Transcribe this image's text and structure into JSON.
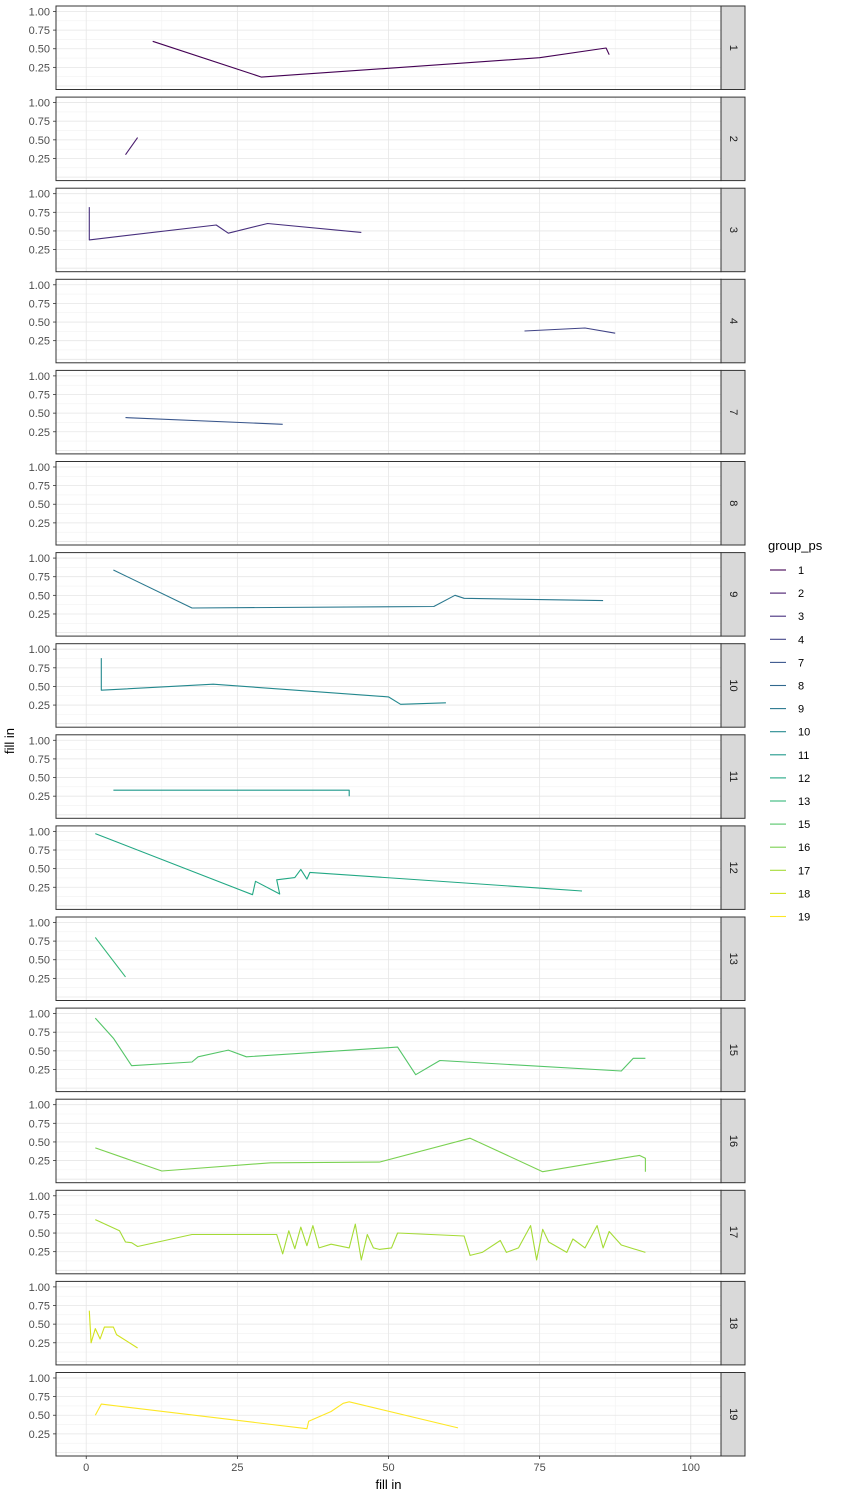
{
  "chart_data": {
    "type": "line",
    "xlabel": "fill in",
    "ylabel": "fill in",
    "xlim": [
      -5,
      105
    ],
    "ylim": [
      0,
      1
    ],
    "x_ticks": [
      0,
      25,
      50,
      75,
      100
    ],
    "y_ticks": [
      0.25,
      0.5,
      0.75,
      1.0
    ],
    "y_tick_labels": [
      "0.25",
      "0.50",
      "0.75",
      "1.00"
    ],
    "grid": true,
    "legend": {
      "title": "group_ps",
      "placement": "right"
    },
    "panels": [
      {
        "name": "1",
        "color": "#440154",
        "x": [
          11,
          29,
          75,
          86,
          86.5
        ],
        "y": [
          0.6,
          0.12,
          0.38,
          0.51,
          0.42
        ]
      },
      {
        "name": "2",
        "color": "#481a6c",
        "x": [
          6.5,
          8.5
        ],
        "y": [
          0.3,
          0.53
        ]
      },
      {
        "name": "3",
        "color": "#472f7d",
        "x": [
          0.5,
          0.5,
          21.5,
          23.5,
          30,
          45.5
        ],
        "y": [
          0.82,
          0.38,
          0.58,
          0.47,
          0.6,
          0.48
        ]
      },
      {
        "name": "4",
        "color": "#414487",
        "x": [
          72.5,
          82.5,
          87.5
        ],
        "y": [
          0.38,
          0.42,
          0.35
        ]
      },
      {
        "name": "7",
        "color": "#39568c",
        "x": [
          6.5,
          32.5
        ],
        "y": [
          0.44,
          0.35
        ]
      },
      {
        "name": "8",
        "color": "#31688e",
        "x": [],
        "y": []
      },
      {
        "name": "9",
        "color": "#2a788e",
        "x": [
          4.5,
          17.5,
          57.5,
          61,
          62.5,
          85.5
        ],
        "y": [
          0.84,
          0.33,
          0.35,
          0.5,
          0.46,
          0.43
        ]
      },
      {
        "name": "10",
        "color": "#23888e",
        "x": [
          2.5,
          2.5,
          21,
          50,
          52,
          59.5
        ],
        "y": [
          0.88,
          0.45,
          0.53,
          0.36,
          0.26,
          0.28
        ]
      },
      {
        "name": "11",
        "color": "#1f988b",
        "x": [
          4.5,
          43.5,
          43.5
        ],
        "y": [
          0.33,
          0.33,
          0.25
        ]
      },
      {
        "name": "12",
        "color": "#22a884",
        "x": [
          1.5,
          27.5,
          28,
          32,
          31.5,
          34.5,
          35.5,
          36.5,
          37,
          82
        ],
        "y": [
          0.97,
          0.15,
          0.33,
          0.16,
          0.35,
          0.38,
          0.49,
          0.36,
          0.45,
          0.2
        ]
      },
      {
        "name": "13",
        "color": "#35b779",
        "x": [
          1.5,
          6.5
        ],
        "y": [
          0.8,
          0.27
        ]
      },
      {
        "name": "15",
        "color": "#54c568",
        "x": [
          1.5,
          4.5,
          7.5,
          17.5,
          18.5,
          23.5,
          26.5,
          51.5,
          54.5,
          58.5,
          88.5,
          90.5,
          92.5
        ],
        "y": [
          0.94,
          0.67,
          0.3,
          0.35,
          0.42,
          0.51,
          0.42,
          0.55,
          0.18,
          0.37,
          0.23,
          0.4,
          0.4
        ]
      },
      {
        "name": "16",
        "color": "#7ad151",
        "x": [
          1.5,
          12.5,
          30.5,
          48.5,
          63.5,
          75.5,
          91.5,
          92.5,
          92.5
        ],
        "y": [
          0.42,
          0.11,
          0.22,
          0.23,
          0.55,
          0.1,
          0.32,
          0.28,
          0.1
        ]
      },
      {
        "name": "17",
        "color": "#a5db36",
        "x": [
          1.5,
          5.5,
          6.5,
          7.5,
          8.5,
          17.5,
          31.5,
          32.5,
          33.5,
          34.5,
          35.5,
          36.5,
          37.5,
          38.5,
          40.5,
          43.5,
          44.5,
          45.5,
          46.5,
          47.5,
          48.5,
          50.5,
          51.5,
          62.5,
          63.5,
          65.5,
          68.5,
          69.5,
          71.5,
          73.5,
          74.5,
          75.5,
          76.5,
          79.5,
          80.5,
          82.5,
          84.5,
          85.5,
          86.5,
          88.5,
          92.5
        ],
        "y": [
          0.68,
          0.53,
          0.38,
          0.37,
          0.32,
          0.48,
          0.48,
          0.22,
          0.53,
          0.29,
          0.58,
          0.33,
          0.6,
          0.3,
          0.35,
          0.3,
          0.62,
          0.14,
          0.48,
          0.3,
          0.28,
          0.3,
          0.5,
          0.46,
          0.2,
          0.24,
          0.4,
          0.24,
          0.3,
          0.6,
          0.14,
          0.55,
          0.38,
          0.24,
          0.42,
          0.3,
          0.6,
          0.3,
          0.52,
          0.34,
          0.24
        ]
      },
      {
        "name": "18",
        "color": "#d2e21b",
        "x": [
          0.5,
          0.8,
          1.5,
          2.3,
          3,
          4.5,
          5,
          8.5
        ],
        "y": [
          0.68,
          0.25,
          0.44,
          0.3,
          0.46,
          0.46,
          0.36,
          0.18
        ]
      },
      {
        "name": "19",
        "color": "#fde725",
        "x": [
          1.5,
          2.5,
          36.5,
          36.8,
          40.5,
          42.5,
          43.5,
          61.5
        ],
        "y": [
          0.5,
          0.65,
          0.32,
          0.42,
          0.55,
          0.66,
          0.68,
          0.33
        ]
      }
    ]
  }
}
